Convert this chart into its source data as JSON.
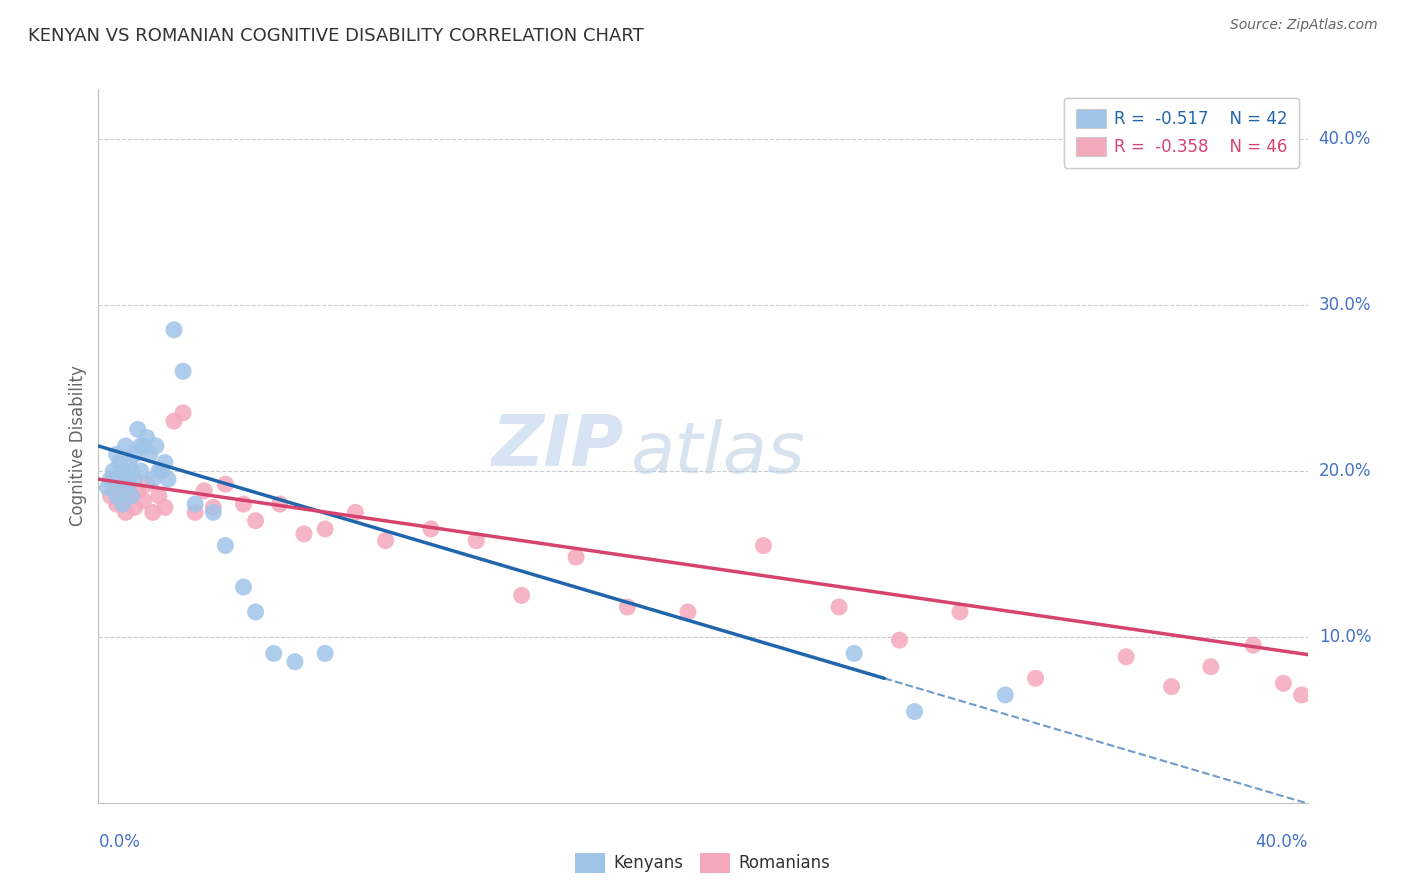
{
  "title": "KENYAN VS ROMANIAN COGNITIVE DISABILITY CORRELATION CHART",
  "source": "Source: ZipAtlas.com",
  "ylabel": "Cognitive Disability",
  "right_ytick_vals": [
    0.1,
    0.2,
    0.3,
    0.4
  ],
  "right_ytick_labels": [
    "10.0%",
    "20.0%",
    "30.0%",
    "40.0%"
  ],
  "xlim": [
    0.0,
    0.4
  ],
  "ylim": [
    0.0,
    0.43
  ],
  "kenyan_color": "#a0c4e8",
  "romanian_color": "#f4a8bc",
  "kenyan_line_color": "#2166ac",
  "romanian_line_color": "#d6436e",
  "watermark_top": "ZIP",
  "watermark_bot": "atlas",
  "kenyan_x": [
    0.003,
    0.004,
    0.005,
    0.006,
    0.006,
    0.007,
    0.007,
    0.008,
    0.008,
    0.009,
    0.009,
    0.01,
    0.01,
    0.011,
    0.011,
    0.012,
    0.012,
    0.013,
    0.014,
    0.014,
    0.015,
    0.016,
    0.017,
    0.018,
    0.019,
    0.02,
    0.021,
    0.022,
    0.023,
    0.025,
    0.028,
    0.032,
    0.038,
    0.042,
    0.048,
    0.052,
    0.058,
    0.065,
    0.075,
    0.25,
    0.27,
    0.3
  ],
  "kenyan_y": [
    0.19,
    0.195,
    0.2,
    0.185,
    0.21,
    0.195,
    0.205,
    0.18,
    0.2,
    0.215,
    0.19,
    0.195,
    0.205,
    0.185,
    0.2,
    0.195,
    0.21,
    0.225,
    0.215,
    0.2,
    0.215,
    0.22,
    0.21,
    0.195,
    0.215,
    0.2,
    0.2,
    0.205,
    0.195,
    0.285,
    0.26,
    0.18,
    0.175,
    0.155,
    0.13,
    0.115,
    0.09,
    0.085,
    0.09,
    0.09,
    0.055,
    0.065
  ],
  "romanian_x": [
    0.004,
    0.005,
    0.006,
    0.007,
    0.008,
    0.009,
    0.01,
    0.011,
    0.012,
    0.013,
    0.015,
    0.016,
    0.018,
    0.02,
    0.022,
    0.025,
    0.028,
    0.032,
    0.035,
    0.038,
    0.042,
    0.048,
    0.052,
    0.06,
    0.068,
    0.075,
    0.085,
    0.095,
    0.11,
    0.125,
    0.14,
    0.158,
    0.175,
    0.195,
    0.22,
    0.245,
    0.265,
    0.285,
    0.31,
    0.34,
    0.355,
    0.368,
    0.382,
    0.392,
    0.398,
    0.405
  ],
  "romanian_y": [
    0.185,
    0.195,
    0.18,
    0.19,
    0.185,
    0.175,
    0.19,
    0.185,
    0.178,
    0.188,
    0.182,
    0.192,
    0.175,
    0.185,
    0.178,
    0.23,
    0.235,
    0.175,
    0.188,
    0.178,
    0.192,
    0.18,
    0.17,
    0.18,
    0.162,
    0.165,
    0.175,
    0.158,
    0.165,
    0.158,
    0.125,
    0.148,
    0.118,
    0.115,
    0.155,
    0.118,
    0.098,
    0.115,
    0.075,
    0.088,
    0.07,
    0.082,
    0.095,
    0.072,
    0.065,
    0.088
  ],
  "kenyan_trend_x0": 0.0,
  "kenyan_trend_y0": 0.215,
  "kenyan_trend_x1": 0.26,
  "kenyan_trend_y1": 0.075,
  "romanian_trend_x0": 0.0,
  "romanian_trend_y0": 0.195,
  "romanian_trend_x1": 0.405,
  "romanian_trend_y1": 0.088
}
